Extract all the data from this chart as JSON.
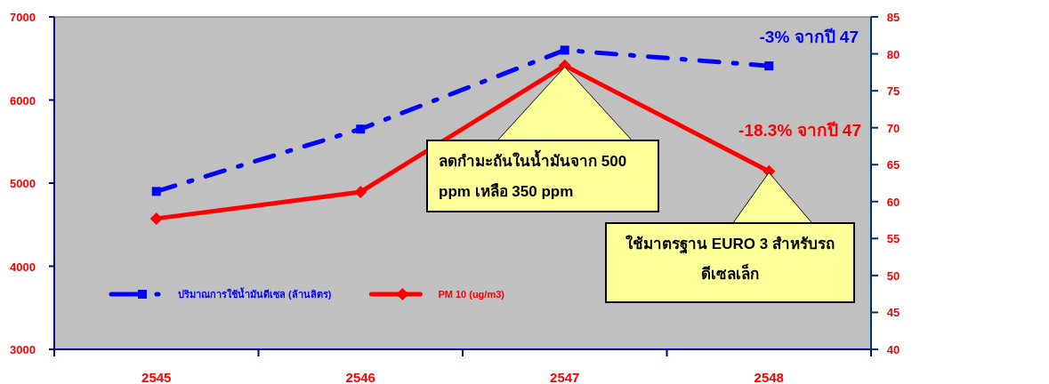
{
  "chart_data": {
    "type": "line",
    "categories": [
      "2545",
      "2546",
      "2547",
      "2548"
    ],
    "series": [
      {
        "name": "ปริมาณการใช้น้ำมันดีเซล (ล้านลิตร)",
        "color": "#0000ff",
        "values": [
          4900,
          5650,
          6600,
          6410
        ],
        "marker": "square",
        "line_style": "dashed"
      },
      {
        "name": "PM 10 (ug/m3)",
        "color": "#ff0000",
        "values": [
          57.7,
          61.3,
          78.4,
          64.1
        ],
        "marker": "diamond",
        "line_style": "solid",
        "axis": "y2"
      }
    ],
    "ylim": [
      3000,
      7000
    ],
    "yticks": [
      3000,
      4000,
      5000,
      6000,
      7000
    ],
    "y2lim": [
      40,
      85
    ],
    "y2ticks": [
      40,
      45,
      50,
      55,
      60,
      65,
      70,
      75,
      80,
      85
    ],
    "grid": false,
    "legend": "bottom left",
    "annotations": [
      "-3% จากปี 47",
      "-18.3% จากปี 47",
      "ลดกำมะถันในน้ำมันจาก 500 ppm เหลือ 350 ppm",
      "ใช้มาตรฐาน EURO 3 สำหรับรถดีเซลเล็ก"
    ]
  }
}
